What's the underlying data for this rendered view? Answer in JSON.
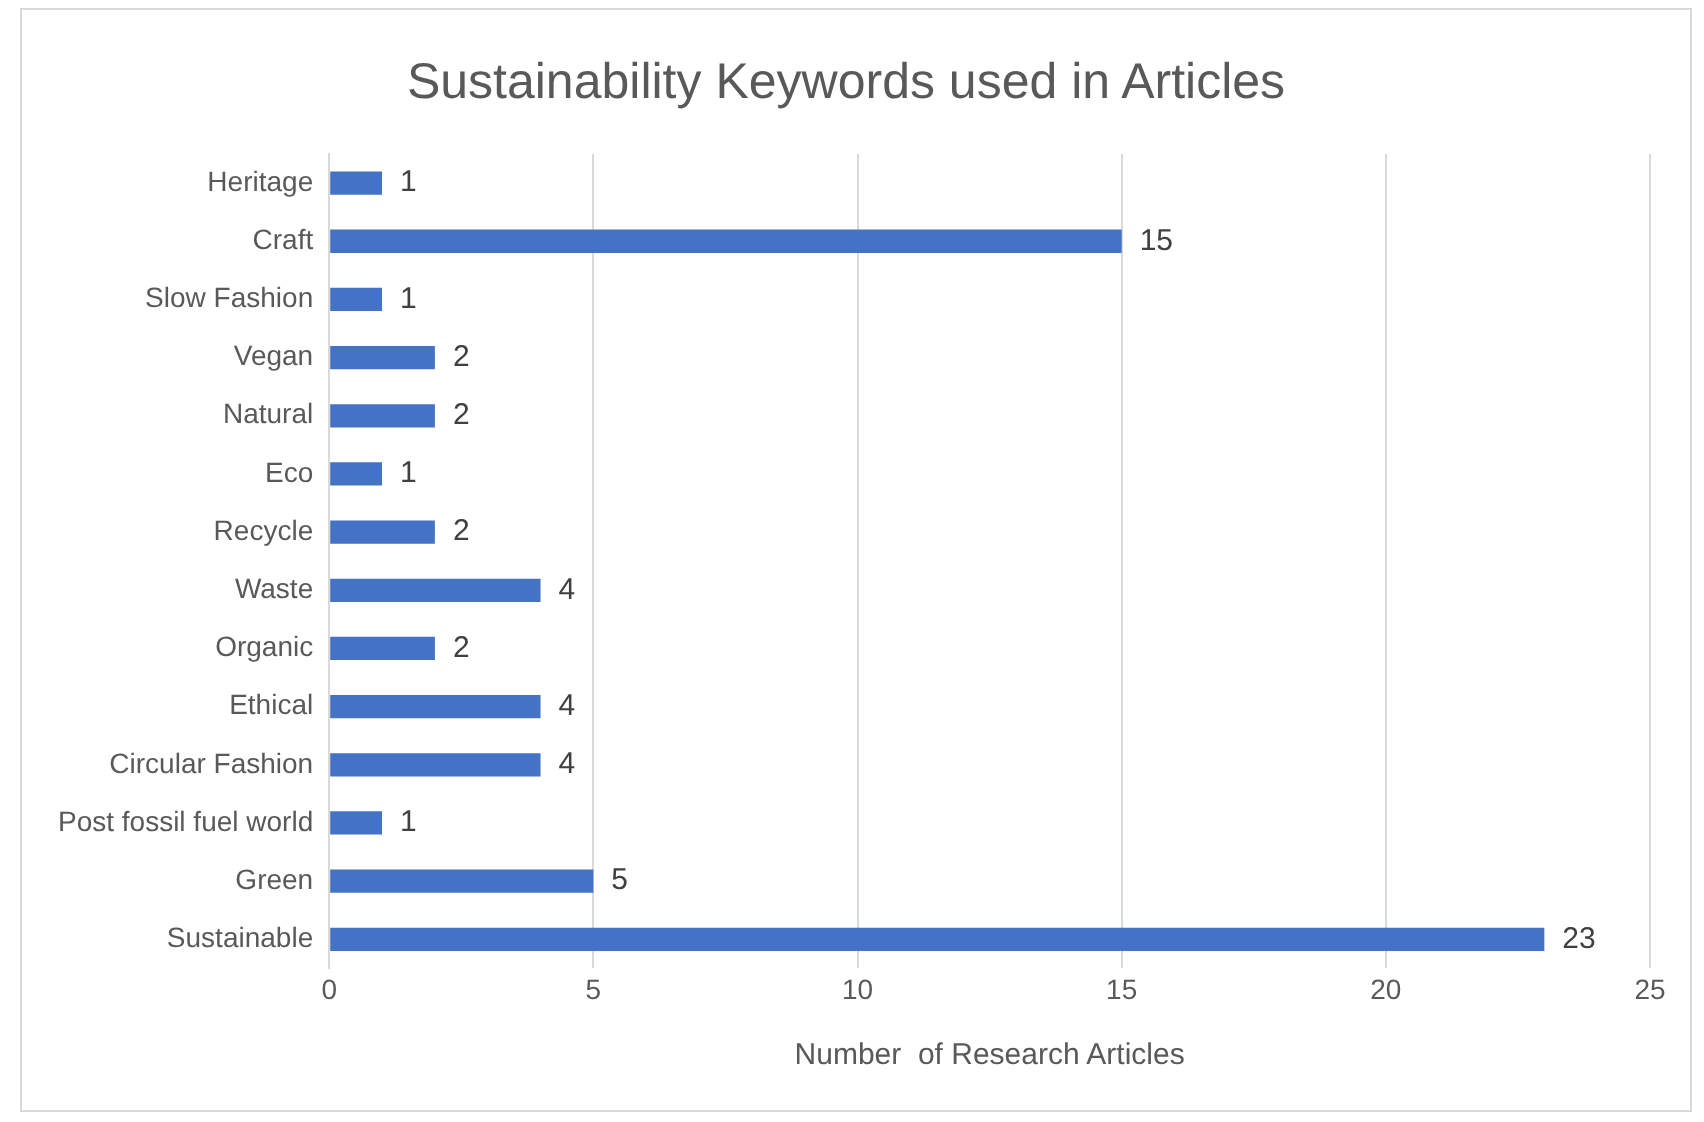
{
  "chart_data": {
    "type": "bar",
    "orientation": "horizontal",
    "title": "Sustainability Keywords used in Articles",
    "xlabel": "Number  of Research Articles",
    "categories": [
      "Heritage",
      "Craft",
      "Slow Fashion",
      "Vegan",
      "Natural",
      "Eco",
      "Recycle",
      "Waste",
      "Organic",
      "Ethical",
      "Circular Fashion",
      "Post fossil fuel world",
      "Green",
      "Sustainable"
    ],
    "values": [
      1,
      15,
      1,
      2,
      2,
      1,
      2,
      4,
      2,
      4,
      4,
      1,
      5,
      23
    ],
    "color": "#4472c4",
    "xlim": [
      0,
      25
    ],
    "xticks": [
      0,
      5,
      10,
      15,
      20,
      25
    ],
    "grid": "x",
    "data_labels": true
  }
}
